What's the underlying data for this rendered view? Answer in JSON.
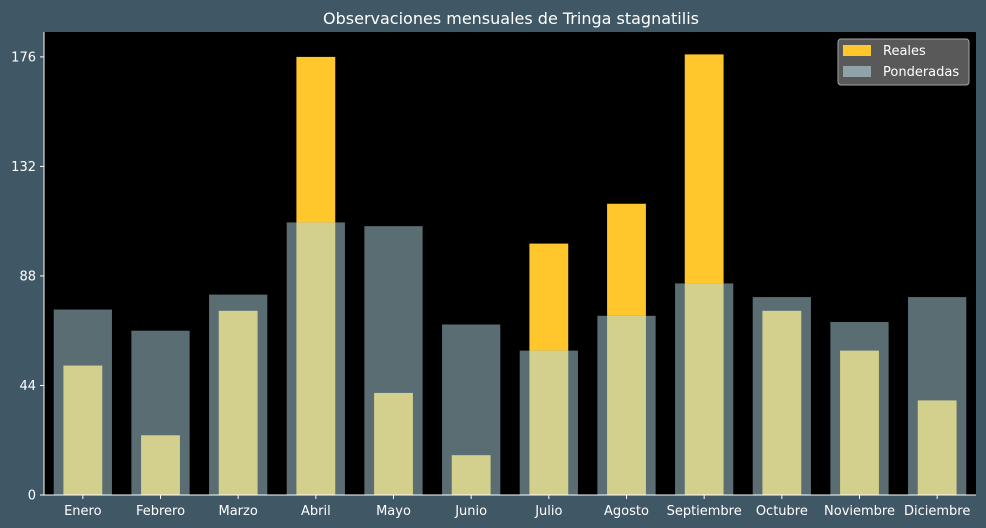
{
  "chart_data": {
    "type": "bar",
    "title": "Observaciones mensuales de Tringa stagnatilis",
    "xlabel": "",
    "ylabel": "",
    "categories": [
      "Enero",
      "Febrero",
      "Marzo",
      "Abril",
      "Mayo",
      "Junio",
      "Julio",
      "Agosto",
      "Septiembre",
      "Octubre",
      "Noviembre",
      "Diciembre"
    ],
    "series": [
      {
        "name": "Reales",
        "color": "#ffc72c",
        "values": [
          52,
          24,
          74,
          176,
          41,
          16,
          101,
          117,
          177,
          74,
          58,
          38
        ]
      },
      {
        "name": "Ponderadas",
        "color": "#8fa3a8",
        "values": [
          74.5,
          66,
          80.5,
          109.5,
          108,
          68.5,
          58,
          72,
          85,
          79.5,
          69.5,
          79.5
        ]
      }
    ],
    "ylim": [
      0,
      186
    ],
    "yticks": [
      0,
      44,
      88,
      132,
      176
    ],
    "grid": false,
    "legend_position": "top-right",
    "background": "#000000",
    "figure_background": "#405765",
    "overlap_color": "#d3cf8d"
  }
}
